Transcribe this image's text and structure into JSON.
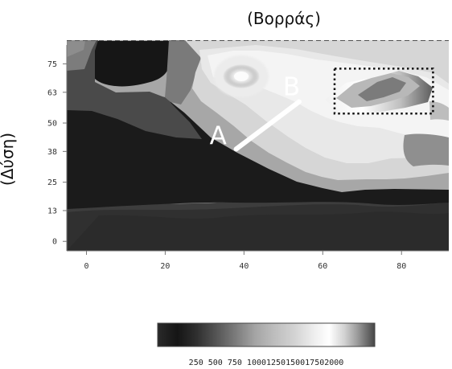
{
  "chart_data": {
    "type": "heatmap",
    "title": "(Βορράς)",
    "ylabel": "(Δύση)",
    "x_ticks": [
      "0",
      "20",
      "40",
      "60",
      "80"
    ],
    "y_ticks": [
      "75",
      "63",
      "50",
      "38",
      "25",
      "13",
      "0"
    ],
    "xlim": [
      -5,
      92
    ],
    "ylim": [
      -4,
      85
    ],
    "grid": false,
    "colorbar": {
      "labels": [
        "250",
        "500",
        "750",
        "1000",
        "1250",
        "1500",
        "1750",
        "2000"
      ],
      "printed_labels": "250 500 750 10001250150017502000",
      "range": [
        0,
        2200
      ],
      "colors": [
        "#2a2a2a",
        "#151515",
        "#383838",
        "#555555",
        "#6f6f6f",
        "#898989",
        "#a0a0a0",
        "#bbbbbb",
        "#d0d0d0",
        "#e0e0e0",
        "#f0f0f0",
        "#d4d4d4",
        "#aaaaaa",
        "#7b7b7b",
        "#4d4d4d"
      ]
    },
    "annotations": {
      "point_a": "A",
      "point_b": "B",
      "line_ab": {
        "start": [
          38,
          39
        ],
        "end": [
          54,
          59
        ]
      },
      "highlight_box": {
        "x_range": [
          63,
          88
        ],
        "y_range": [
          54,
          73
        ]
      }
    }
  }
}
